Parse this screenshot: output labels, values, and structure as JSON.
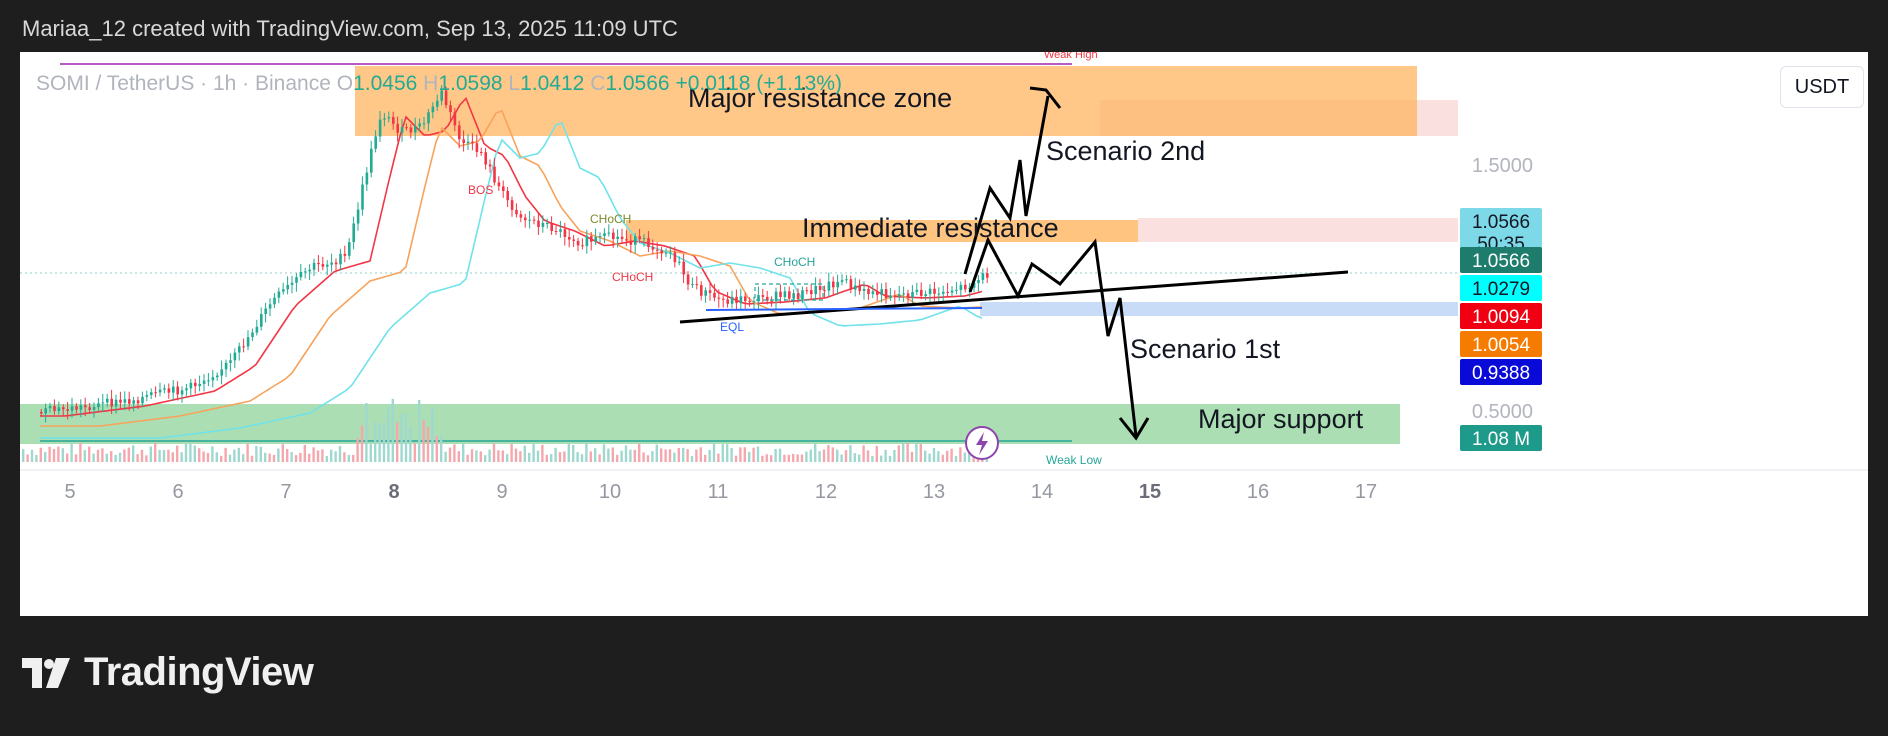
{
  "header": {
    "attribution": "Mariaa_12 created with TradingView.com, Sep 13, 2025 11:09 UTC"
  },
  "legend": {
    "symbol": "SOMI / TetherUS · 1h · Binance",
    "open_label": "O",
    "open": "1.0456",
    "high_label": "H",
    "high": "1.0598",
    "low_label": "L",
    "low": "1.0412",
    "close_label": "C",
    "close": "1.0566",
    "change": "+0.0118 (+1.13%)"
  },
  "currency_button": "USDT",
  "brand": {
    "name": "TradingView"
  },
  "colors": {
    "up": "#22ab94",
    "down": "#f23645",
    "ema_red": "#f23645",
    "ema_orange": "#f7a35c",
    "ema_cyan": "#6fe2ea",
    "resistance_zone": "#ffb560",
    "support_zone": "#8fd49a",
    "trendline": "#000000"
  },
  "chart_data": {
    "type": "candlestick",
    "x_axis": {
      "ticks": [
        "5",
        "6",
        "7",
        "8",
        "9",
        "10",
        "11",
        "12",
        "13",
        "14",
        "15",
        "16",
        "17"
      ]
    },
    "y_axis": {
      "scale": "log",
      "ticks": [
        "1.5000",
        "0.5000"
      ]
    },
    "price_labels": [
      {
        "value": "1.0566",
        "sub": "50:35",
        "color": "#7dd8e8",
        "text_color": "#131722"
      },
      {
        "value": "1.0566",
        "color": "#1e7c6c",
        "text_color": "#ffffff"
      },
      {
        "value": "1.0279",
        "color": "#00ffff",
        "text_color": "#131722"
      },
      {
        "value": "1.0094",
        "color": "#f00010",
        "text_color": "#ffffff"
      },
      {
        "value": "1.0054",
        "color": "#f57c00",
        "text_color": "#ffffff"
      },
      {
        "value": "0.9388",
        "color": "#0a0ad8",
        "text_color": "#ffffff"
      },
      {
        "value": "1.08 M",
        "color": "#1e9a8a",
        "text_color": "#ffffff"
      }
    ],
    "annotations": {
      "major_resistance": "Major resistance zone",
      "immediate_resistance": "Immediate resistance",
      "major_support": "Major support",
      "scenario_2": "Scenario 2nd",
      "scenario_1": "Scenario 1st",
      "bos": "BOS",
      "choch_1": "CHoCH",
      "choch_2": "CHoCH",
      "choch_3": "CHoCH",
      "eql": "EQL",
      "weak_high": "Weak High",
      "weak_low": "Weak Low"
    }
  }
}
